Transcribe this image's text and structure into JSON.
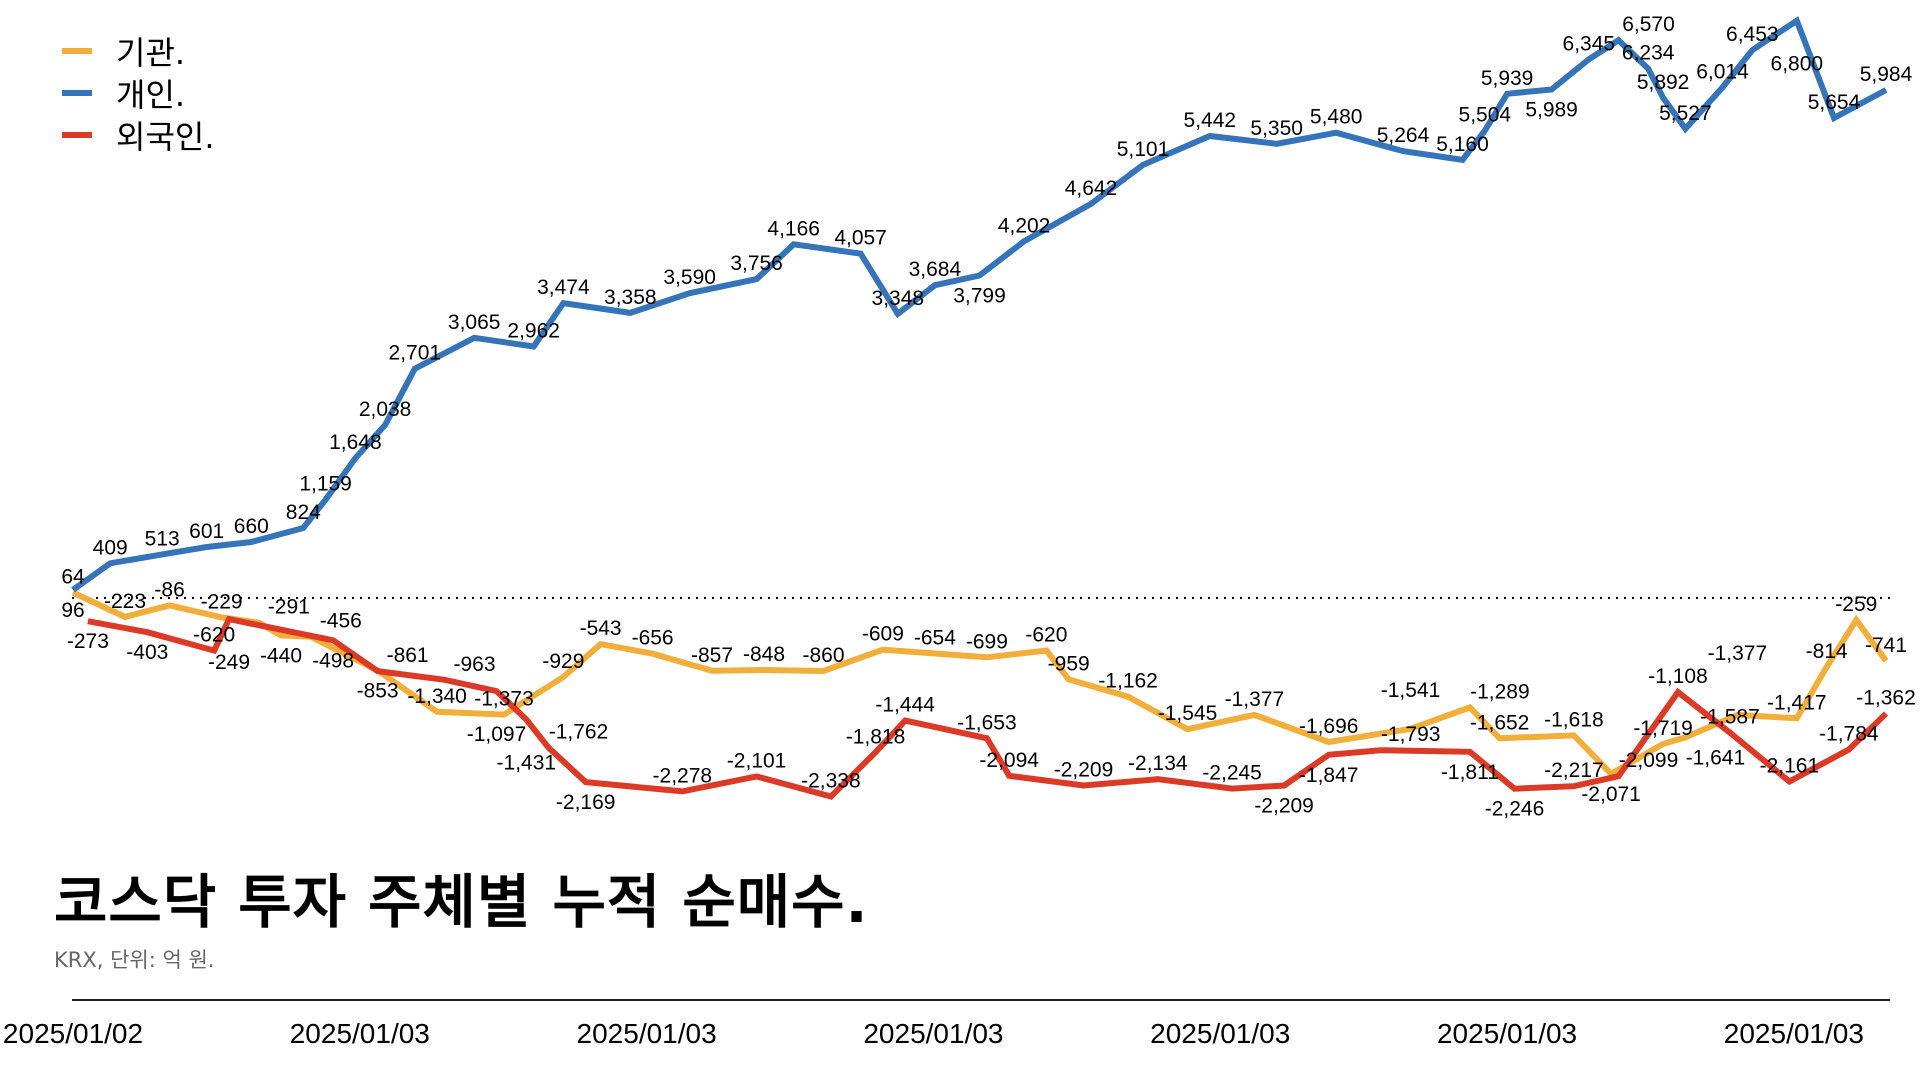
{
  "chart_data": {
    "type": "line",
    "title": "코스닥 투자 주체별 누적 순매수.",
    "subtitle": "KRX, 단위: 억 원.",
    "xlabel": "",
    "ylabel": "",
    "ylim": [
      -2800,
      6900
    ],
    "x_range": [
      0,
      244
    ],
    "zero_line": "dotted",
    "legend_position": "top-left",
    "x_ticks": [
      {
        "x": 0,
        "label": "2025/01/02"
      },
      {
        "x": 38.6,
        "label": "2025/01/03"
      },
      {
        "x": 77.2,
        "label": "2025/01/03"
      },
      {
        "x": 115.8,
        "label": "2025/01/03"
      },
      {
        "x": 154.4,
        "label": "2025/01/03"
      },
      {
        "x": 193.0,
        "label": "2025/01/03"
      },
      {
        "x": 231.6,
        "label": "2025/01/03"
      }
    ],
    "series": [
      {
        "name": "기관.",
        "color": "#F2AE3A",
        "points": [
          [
            0,
            64
          ],
          [
            7,
            -223
          ],
          [
            13,
            -86
          ],
          [
            20,
            -229
          ],
          [
            25,
            -291
          ],
          [
            28,
            -440
          ],
          [
            32,
            -456
          ],
          [
            41,
            -853
          ],
          [
            49,
            -1340
          ],
          [
            58,
            -1373
          ],
          [
            66,
            -929
          ],
          [
            71,
            -543
          ],
          [
            78,
            -656
          ],
          [
            86,
            -857
          ],
          [
            93,
            -848
          ],
          [
            101,
            -860
          ],
          [
            109,
            -609
          ],
          [
            116,
            -654
          ],
          [
            123,
            -699
          ],
          [
            131,
            -620
          ],
          [
            134,
            -959
          ],
          [
            142,
            -1162
          ],
          [
            150,
            -1545
          ],
          [
            159,
            -1377
          ],
          [
            169,
            -1696
          ],
          [
            180,
            -1541
          ],
          [
            188,
            -1289
          ],
          [
            192,
            -1652
          ],
          [
            202,
            -1618
          ],
          [
            207,
            -2071
          ],
          [
            214,
            -1719
          ],
          [
            217,
            -1641
          ],
          [
            224,
            -1377
          ],
          [
            232,
            -1417
          ],
          [
            236,
            -814
          ],
          [
            240,
            -259
          ],
          [
            244,
            -741
          ]
        ]
      },
      {
        "name": "개인.",
        "color": "#3574B8",
        "points": [
          [
            0,
            96
          ],
          [
            5,
            409
          ],
          [
            12,
            513
          ],
          [
            18,
            601
          ],
          [
            24,
            660
          ],
          [
            31,
            824
          ],
          [
            34,
            1159
          ],
          [
            38,
            1648
          ],
          [
            42,
            2038
          ],
          [
            46,
            2701
          ],
          [
            54,
            3065
          ],
          [
            62,
            2962
          ],
          [
            66,
            3474
          ],
          [
            75,
            3358
          ],
          [
            83,
            3590
          ],
          [
            92,
            3756
          ],
          [
            97,
            4166
          ],
          [
            106,
            4057
          ],
          [
            111,
            3348
          ],
          [
            116,
            3684
          ],
          [
            122,
            3799
          ],
          [
            128,
            4202
          ],
          [
            137,
            4642
          ],
          [
            144,
            5101
          ],
          [
            153,
            5442
          ],
          [
            162,
            5350
          ],
          [
            170,
            5480
          ],
          [
            179,
            5264
          ],
          [
            187,
            5160
          ],
          [
            190,
            5504
          ],
          [
            193,
            5939
          ],
          [
            199,
            5989
          ],
          [
            204,
            6345
          ],
          [
            208,
            6570
          ],
          [
            212,
            6234
          ],
          [
            214,
            5892
          ],
          [
            217,
            5527
          ],
          [
            222,
            6014
          ],
          [
            226,
            6453
          ],
          [
            232,
            6800
          ],
          [
            237,
            5654
          ],
          [
            244,
            5984
          ]
        ]
      },
      {
        "name": "외국인.",
        "color": "#DB3A27",
        "points": [
          [
            2,
            -273
          ],
          [
            10,
            -403
          ],
          [
            19,
            -620
          ],
          [
            21,
            -249
          ],
          [
            35,
            -498
          ],
          [
            41,
            -861
          ],
          [
            50,
            -963
          ],
          [
            57,
            -1097
          ],
          [
            61,
            -1431
          ],
          [
            64,
            -1762
          ],
          [
            69,
            -2169
          ],
          [
            82,
            -2278
          ],
          [
            92,
            -2101
          ],
          [
            102,
            -2338
          ],
          [
            108,
            -1818
          ],
          [
            112,
            -1444
          ],
          [
            123,
            -1653
          ],
          [
            126,
            -2094
          ],
          [
            136,
            -2209
          ],
          [
            146,
            -2134
          ],
          [
            156,
            -2245
          ],
          [
            163,
            -2209
          ],
          [
            169,
            -1847
          ],
          [
            176,
            -1793
          ],
          [
            188,
            -1811
          ],
          [
            194,
            -2246
          ],
          [
            202,
            -2217
          ],
          [
            208,
            -2099
          ],
          [
            216,
            -1108
          ],
          [
            223,
            -1587
          ],
          [
            231,
            -2161
          ],
          [
            239,
            -1784
          ],
          [
            244,
            -1362
          ]
        ]
      }
    ]
  }
}
